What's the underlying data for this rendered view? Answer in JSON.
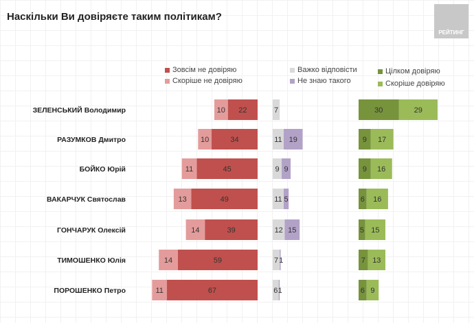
{
  "chart_data": {
    "type": "bar",
    "title": "Наскільки Ви довіряєте таким політикам?",
    "logo": "РЕЙТИНГ",
    "categories": [
      "ЗЕЛЕНСЬКИЙ Володимир",
      "РАЗУМКОВ Дмитро",
      "БОЙКО Юрій",
      "ВАКАРЧУК Святослав",
      "ГОНЧАРУК Олексій",
      "ТИМОШЕНКО Юлія",
      "ПОРОШЕНКО Петро"
    ],
    "series": [
      {
        "name": "Зовсім не довіряю",
        "color": "#c0504d",
        "values": [
          22,
          34,
          45,
          49,
          39,
          59,
          67
        ]
      },
      {
        "name": "Скоріше не довіряю",
        "color": "#e39c9b",
        "values": [
          10,
          10,
          11,
          13,
          14,
          14,
          11
        ]
      },
      {
        "name": "Важко відповісти",
        "color": "#d9d9d9",
        "values": [
          7,
          11,
          9,
          11,
          12,
          7,
          6
        ]
      },
      {
        "name": "Не знаю такого",
        "color": "#b3a2c7",
        "values": [
          0,
          19,
          9,
          5,
          15,
          1,
          1
        ]
      },
      {
        "name": "Цілком довіряю",
        "color": "#77933c",
        "values": [
          30,
          9,
          9,
          6,
          5,
          7,
          6
        ]
      },
      {
        "name": "Скоріше довіряю",
        "color": "#9bbb59",
        "values": [
          29,
          17,
          16,
          16,
          15,
          13,
          9
        ]
      }
    ]
  }
}
